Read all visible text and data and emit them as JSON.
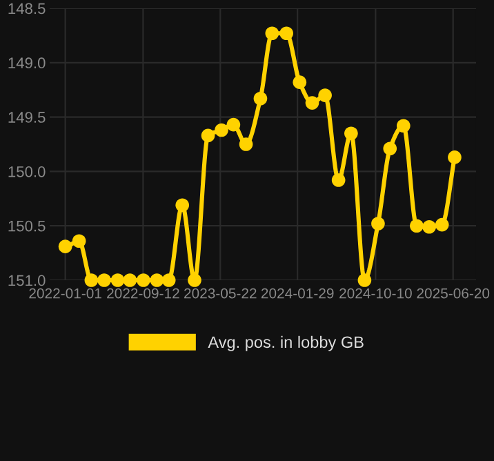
{
  "chart_data": {
    "type": "line",
    "x": [
      "2022-01-01",
      "2022-02-15",
      "2022-03-27",
      "2022-05-08",
      "2022-06-21",
      "2022-07-31",
      "2022-09-13",
      "2022-10-27",
      "2022-12-05",
      "2023-01-18",
      "2023-02-27",
      "2023-04-12",
      "2023-05-26",
      "2023-07-04",
      "2023-08-14",
      "2023-09-30",
      "2023-11-07",
      "2023-12-24",
      "2024-02-05",
      "2024-03-17",
      "2024-04-28",
      "2024-06-11",
      "2024-07-22",
      "2024-09-04",
      "2024-10-18",
      "2024-11-26",
      "2025-01-09",
      "2025-02-21",
      "2025-04-03",
      "2025-05-15",
      "2025-06-25"
    ],
    "series": [
      {
        "name": "Avg. pos. in lobby GB",
        "color": "#ffd200",
        "values": [
          150.69,
          150.64,
          151.0,
          151.0,
          151.0,
          151.0,
          151.0,
          151.0,
          151.0,
          150.31,
          151.0,
          149.67,
          149.62,
          149.57,
          149.75,
          149.33,
          148.73,
          148.73,
          149.18,
          149.37,
          149.3,
          150.08,
          149.65,
          151.0,
          150.48,
          149.79,
          149.58,
          150.5,
          150.51,
          150.49,
          149.87
        ]
      }
    ],
    "xlim": [
      "2021-11-11",
      "2025-09-03"
    ],
    "xticks": [
      "2022-01-01",
      "2022-09-12",
      "2023-05-22",
      "2024-01-29",
      "2024-10-10",
      "2025-06-20"
    ],
    "ylim": [
      151.0,
      148.5
    ],
    "yticks": [
      {
        "value": 148.5,
        "label": "148.5"
      },
      {
        "value": 149,
        "label": "149.0"
      },
      {
        "value": 149.5,
        "label": "149.5"
      },
      {
        "value": 150,
        "label": "150.0"
      },
      {
        "value": 150.5,
        "label": "150.5"
      },
      {
        "value": 151,
        "label": "151.0"
      }
    ],
    "grid": true,
    "legend": "bottom",
    "marker": "circle",
    "line_style": "solid"
  }
}
